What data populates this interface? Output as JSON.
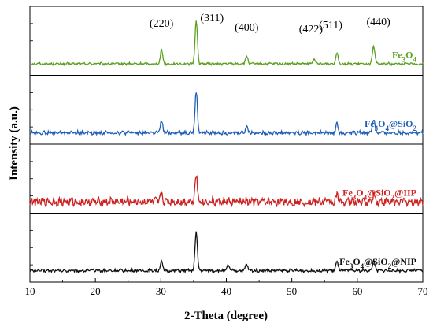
{
  "chart_data": {
    "type": "line",
    "xlabel": "2-Theta (degree)",
    "ylabel": "Intensity (a.u.)",
    "xlim": [
      10,
      70
    ],
    "xticks": [
      10,
      20,
      30,
      40,
      50,
      60,
      70
    ],
    "stacked_panels": true,
    "grid": false,
    "legend": "none",
    "peak_labels": [
      {
        "text": "(220)",
        "x": 30.1
      },
      {
        "text": "(311)",
        "x": 35.4
      },
      {
        "text": "(400)",
        "x": 43.1
      },
      {
        "text": "(422)",
        "x": 53.4
      },
      {
        "text": "(511)",
        "x": 56.9
      },
      {
        "text": "(440)",
        "x": 62.5
      }
    ],
    "series": [
      {
        "name": "Fe3O4",
        "color": "#5aa01e",
        "baseline": 0.2,
        "noise": 0.04,
        "peaks": [
          {
            "x": 30.1,
            "height": 0.55
          },
          {
            "x": 35.4,
            "height": 1.7
          },
          {
            "x": 43.1,
            "height": 0.3
          },
          {
            "x": 53.4,
            "height": 0.2
          },
          {
            "x": 56.9,
            "height": 0.45
          },
          {
            "x": 62.5,
            "height": 0.7
          }
        ]
      },
      {
        "name": "Fe3O4@SiO2",
        "color": "#1f5fb8",
        "baseline": 0.2,
        "noise": 0.06,
        "peaks": [
          {
            "x": 30.1,
            "height": 0.45
          },
          {
            "x": 35.4,
            "height": 1.6
          },
          {
            "x": 43.1,
            "height": 0.25
          },
          {
            "x": 56.9,
            "height": 0.35
          },
          {
            "x": 62.5,
            "height": 0.55
          }
        ]
      },
      {
        "name": "Fe3O4@SiO2@IIP",
        "color": "#cc2222",
        "baseline": 0.2,
        "noise": 0.14,
        "peaks": [
          {
            "x": 30.1,
            "height": 0.3
          },
          {
            "x": 35.4,
            "height": 1.1
          },
          {
            "x": 56.9,
            "height": 0.25
          },
          {
            "x": 62.5,
            "height": 0.3
          }
        ]
      },
      {
        "name": "Fe3O4@SiO2@NIP",
        "color": "#111111",
        "baseline": 0.2,
        "noise": 0.05,
        "peaks": [
          {
            "x": 30.1,
            "height": 0.35
          },
          {
            "x": 35.4,
            "height": 1.5
          },
          {
            "x": 40.3,
            "height": 0.2
          },
          {
            "x": 43.1,
            "height": 0.25
          },
          {
            "x": 56.9,
            "height": 0.35
          },
          {
            "x": 62.5,
            "height": 0.4
          }
        ]
      }
    ]
  }
}
